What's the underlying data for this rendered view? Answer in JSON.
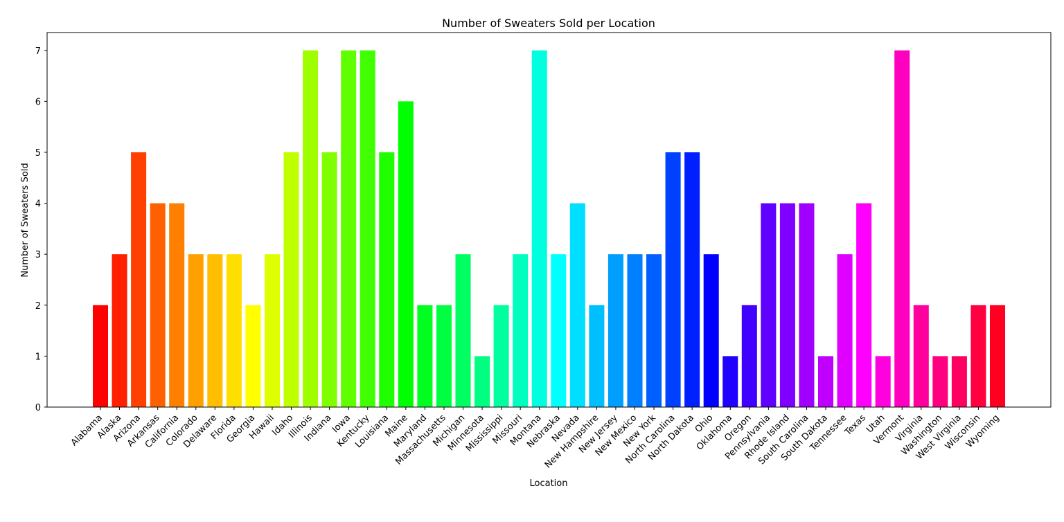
{
  "chart_data": {
    "type": "bar",
    "title": "Number of Sweaters Sold per Location",
    "xlabel": "Location",
    "ylabel": "Number of Sweaters Sold",
    "ylim": [
      0,
      7.35
    ],
    "yticks": [
      0,
      1,
      2,
      3,
      4,
      5,
      6,
      7
    ],
    "grid": false,
    "categories": [
      "Alabama",
      "Alaska",
      "Arizona",
      "Arkansas",
      "California",
      "Colorado",
      "Delaware",
      "Florida",
      "Georgia",
      "Hawaii",
      "Idaho",
      "Illinois",
      "Indiana",
      "Iowa",
      "Kentucky",
      "Louisiana",
      "Maine",
      "Maryland",
      "Massachusetts",
      "Michigan",
      "Minnesota",
      "Mississippi",
      "Missouri",
      "Montana",
      "Nebraska",
      "Nevada",
      "New Hampshire",
      "New Jersey",
      "New Mexico",
      "New York",
      "North Carolina",
      "North Dakota",
      "Ohio",
      "Oklahoma",
      "Oregon",
      "Pennsylvania",
      "Rhode Island",
      "South Carolina",
      "South Dakota",
      "Tennessee",
      "Texas",
      "Utah",
      "Vermont",
      "Virginia",
      "Washington",
      "West Virginia",
      "Wisconsin",
      "Wyoming"
    ],
    "values": [
      2,
      3,
      5,
      4,
      4,
      3,
      3,
      3,
      2,
      3,
      5,
      7,
      5,
      7,
      7,
      5,
      6,
      2,
      2,
      3,
      1,
      2,
      3,
      7,
      3,
      4,
      2,
      3,
      3,
      3,
      5,
      5,
      3,
      1,
      2,
      4,
      4,
      4,
      1,
      3,
      4,
      1,
      7,
      2,
      1,
      1,
      2,
      2
    ],
    "colormap": "hsv (red → orange → yellow → green → cyan → blue → violet → magenta → red)"
  }
}
